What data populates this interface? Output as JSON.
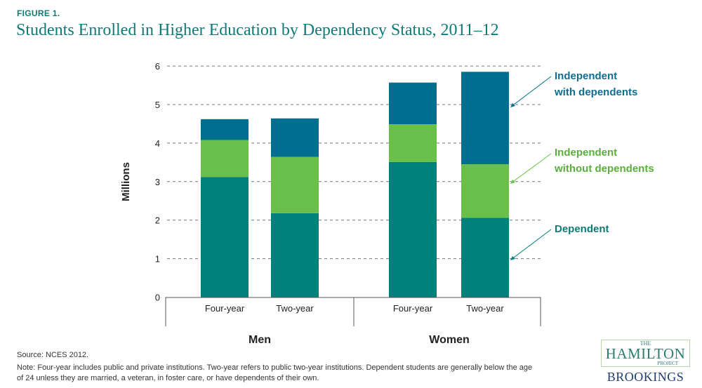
{
  "figure_label": "FIGURE 1.",
  "source": "Source: NCES 2012.",
  "note": "Note: Four-year includes public and private institutions. Two-year refers to public two-year institutions. Dependent students are generally below the age of 24 unless they are married, a veteran, in foster care, or have dependents of their own.",
  "logo": {
    "the": "THE",
    "hamilton": "HAMILTON",
    "project": "PROJECT",
    "brookings": "BROOKINGS"
  },
  "chart_data": {
    "type": "bar",
    "stacked": true,
    "title": "Students Enrolled in Higher Education by Dependency Status, 2011–12",
    "ylabel": "Millions",
    "ylim": [
      0,
      6
    ],
    "yticks": [
      "0",
      "1",
      "2",
      "3",
      "4",
      "5",
      "6"
    ],
    "grid": true,
    "legend_placement": "right",
    "groups": [
      "Men",
      "Women"
    ],
    "categories": [
      "Four-year",
      "Two-year",
      "Four-year",
      "Two-year"
    ],
    "series": [
      {
        "name": "Dependent",
        "color": "#00807a",
        "values": [
          3.12,
          2.18,
          3.51,
          2.06
        ]
      },
      {
        "name": "Independent without dependents",
        "color": "#6abf4b",
        "values": [
          0.96,
          1.46,
          0.98,
          1.39
        ]
      },
      {
        "name": "Independent with dependents",
        "color": "#006e8f",
        "values": [
          0.54,
          1.0,
          1.08,
          2.4
        ]
      }
    ],
    "legend_lines": [
      [
        "Dependent"
      ],
      [
        "Independent",
        "without dependents"
      ],
      [
        "Independent",
        "with dependents"
      ]
    ]
  }
}
